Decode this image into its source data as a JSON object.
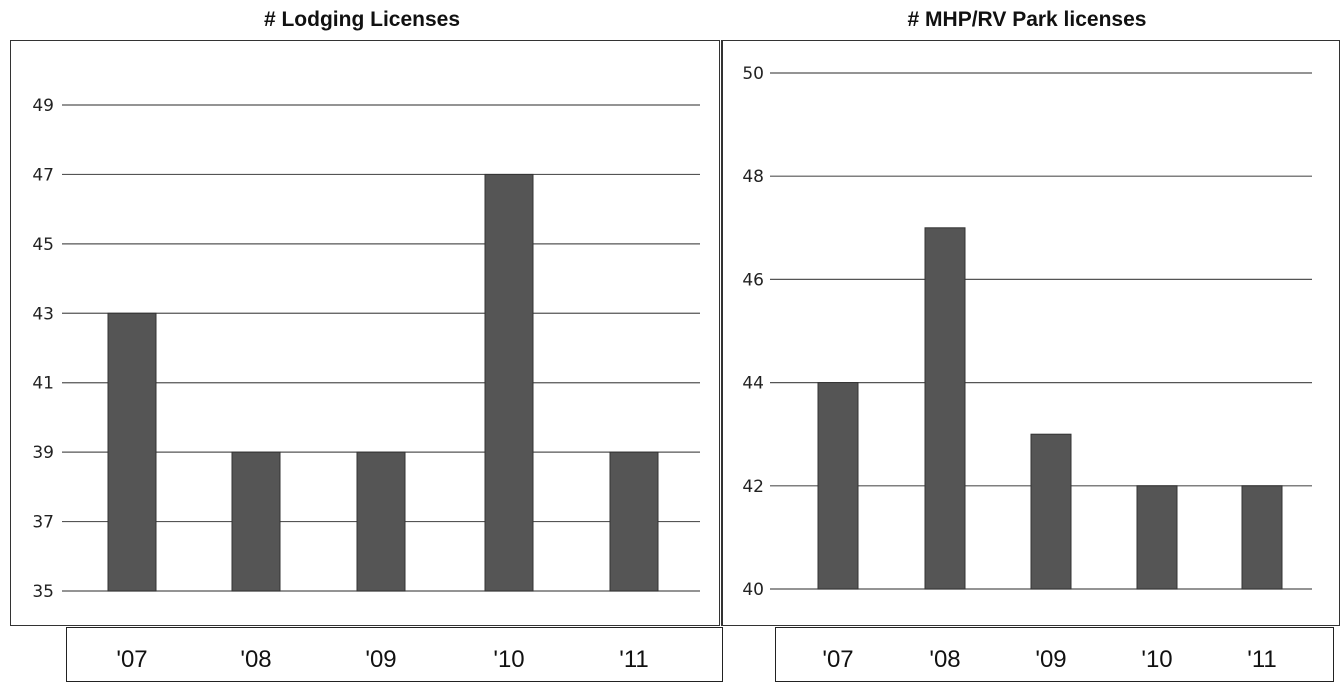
{
  "chart_data": [
    {
      "type": "bar",
      "title": "# Lodging Licenses",
      "categories": [
        "'07",
        "'08",
        "'09",
        "'10",
        "'11"
      ],
      "values": [
        43,
        39,
        39,
        47,
        39
      ],
      "ylim": [
        35,
        50
      ],
      "yticks": [
        "35",
        "37",
        "39",
        "41",
        "43",
        "45",
        "47",
        "49"
      ],
      "grid": true,
      "bar_color": "#555555"
    },
    {
      "type": "bar",
      "title": "# MHP/RV Park licenses",
      "categories": [
        "'07",
        "'08",
        "'09",
        "'10",
        "'11"
      ],
      "values": [
        44,
        47,
        43,
        42,
        42
      ],
      "ylim": [
        40,
        50
      ],
      "yticks": [
        "40",
        "42",
        "44",
        "46",
        "48",
        "50"
      ],
      "grid": true,
      "bar_color": "#555555"
    }
  ]
}
